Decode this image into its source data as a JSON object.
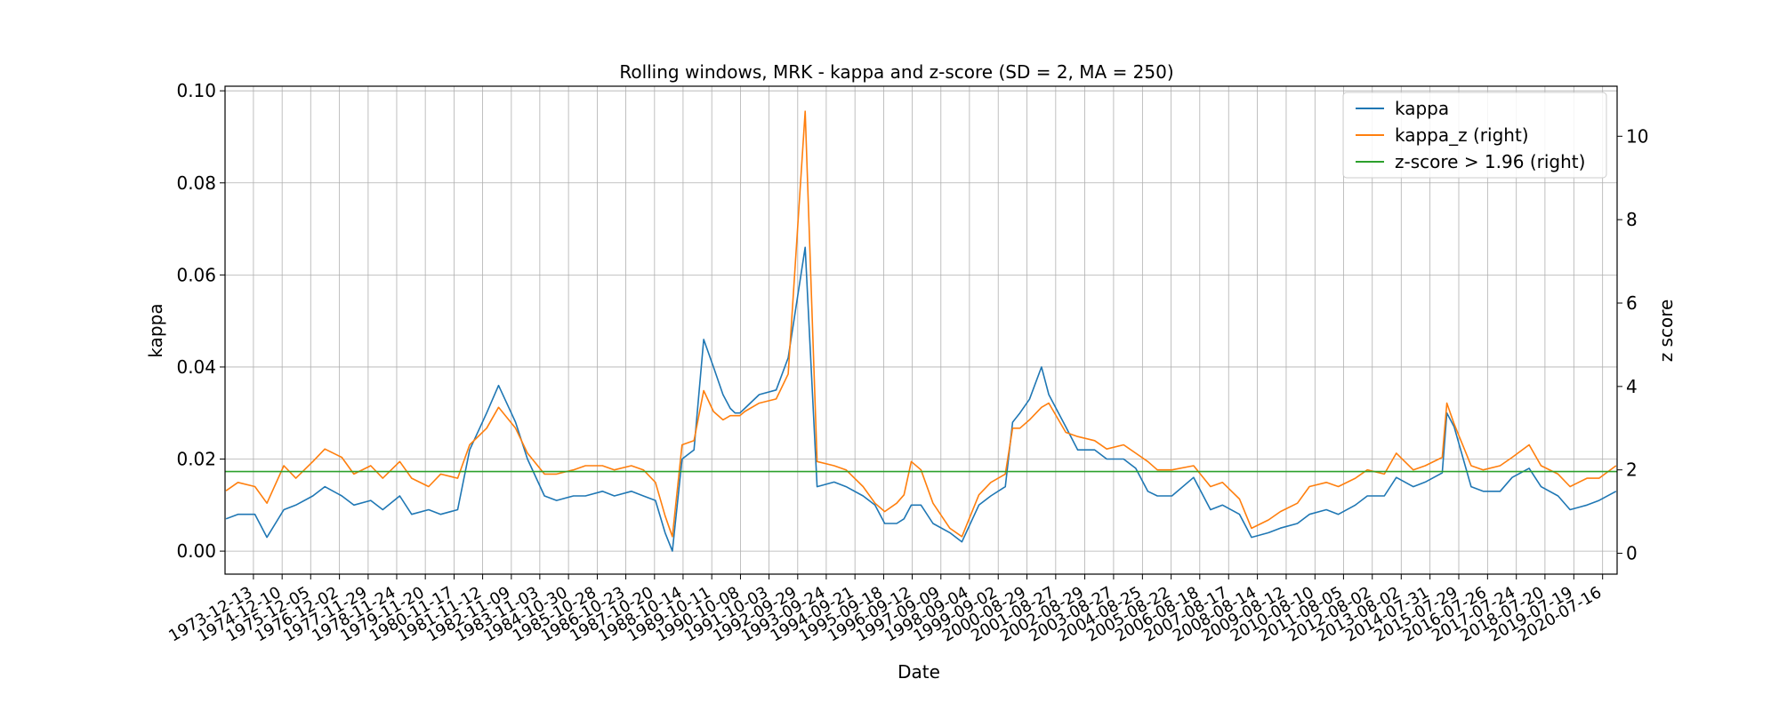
{
  "chart_data": {
    "type": "line",
    "title": "Rolling windows, MRK - kappa and z-score (SD = 2, MA = 250)",
    "xlabel": "Date",
    "ylabel": "kappa",
    "y2label": "z score",
    "x_range": [
      "1972-12-20",
      "2021-01-15"
    ],
    "ylim": [
      -0.005,
      0.101
    ],
    "y2lim": [
      -0.5,
      11.2
    ],
    "yticks": [
      "0.00",
      "0.02",
      "0.04",
      "0.06",
      "0.08",
      "0.10"
    ],
    "y2ticks": [
      "0",
      "2",
      "4",
      "6",
      "8",
      "10"
    ],
    "x_tick_labels": [
      "1973-12-13",
      "1974-12-10",
      "1975-12-05",
      "1976-12-02",
      "1977-11-29",
      "1978-11-24",
      "1979-11-20",
      "1980-11-17",
      "1981-11-12",
      "1982-11-09",
      "1983-11-03",
      "1984-10-30",
      "1985-10-28",
      "1986-10-23",
      "1987-10-20",
      "1988-10-14",
      "1989-10-11",
      "1990-10-08",
      "1991-10-03",
      "1992-09-29",
      "1993-09-24",
      "1994-09-21",
      "1995-09-18",
      "1996-09-12",
      "1997-09-09",
      "1998-09-04",
      "1999-09-02",
      "2000-08-29",
      "2001-08-27",
      "2002-08-29",
      "2003-08-27",
      "2004-08-25",
      "2005-08-22",
      "2006-08-18",
      "2007-08-17",
      "2008-08-14",
      "2009-08-12",
      "2010-08-10",
      "2011-08-05",
      "2012-08-02",
      "2013-08-02",
      "2014-07-31",
      "2015-07-29",
      "2016-07-26",
      "2017-07-24",
      "2018-07-20",
      "2019-07-19",
      "2020-07-16"
    ],
    "grid": true,
    "legend_position": "top-right",
    "series": [
      {
        "name": "kappa",
        "axis": "left",
        "color": "#1f77b4",
        "x": [
          "1973-01-01",
          "1973-06-01",
          "1974-01-01",
          "1974-06-01",
          "1975-01-01",
          "1975-06-01",
          "1976-01-01",
          "1976-06-01",
          "1977-01-01",
          "1977-06-01",
          "1978-01-01",
          "1978-06-01",
          "1979-01-01",
          "1979-06-01",
          "1980-01-01",
          "1980-06-01",
          "1981-01-01",
          "1981-06-01",
          "1982-01-01",
          "1982-06-01",
          "1983-01-01",
          "1983-06-01",
          "1984-01-01",
          "1984-06-01",
          "1985-01-01",
          "1985-06-01",
          "1986-01-01",
          "1986-06-01",
          "1987-01-01",
          "1987-06-01",
          "1987-11-01",
          "1988-03-01",
          "1988-06-01",
          "1988-10-01",
          "1989-03-01",
          "1989-07-01",
          "1989-11-01",
          "1990-03-01",
          "1990-06-01",
          "1990-08-01",
          "1990-10-01",
          "1990-12-01",
          "1991-06-01",
          "1992-01-01",
          "1992-06-01",
          "1993-01-01",
          "1993-06-01",
          "1994-01-01",
          "1994-06-01",
          "1995-01-01",
          "1995-06-01",
          "1995-10-01",
          "1996-03-01",
          "1996-06-01",
          "1996-09-01",
          "1997-01-01",
          "1997-06-01",
          "1998-01-01",
          "1998-06-01",
          "1999-01-01",
          "1999-06-01",
          "1999-12-01",
          "2000-03-01",
          "2000-06-01",
          "2000-10-01",
          "2001-03-01",
          "2001-06-01",
          "2002-01-01",
          "2002-06-01",
          "2003-01-01",
          "2003-06-01",
          "2004-01-01",
          "2004-06-01",
          "2004-11-01",
          "2005-03-01",
          "2005-09-01",
          "2006-06-01",
          "2007-01-01",
          "2007-06-01",
          "2008-01-01",
          "2008-06-01",
          "2009-01-01",
          "2009-06-01",
          "2010-01-01",
          "2010-06-01",
          "2011-01-01",
          "2011-06-01",
          "2012-01-01",
          "2012-06-01",
          "2013-01-01",
          "2013-06-01",
          "2014-01-01",
          "2014-06-01",
          "2015-01-01",
          "2015-03-01",
          "2015-06-01",
          "2016-01-01",
          "2016-06-01",
          "2017-01-01",
          "2017-06-01",
          "2018-01-01",
          "2018-06-01",
          "2019-01-01",
          "2019-06-01",
          "2020-01-01",
          "2020-06-01",
          "2021-01-01"
        ],
        "values": [
          0.007,
          0.008,
          0.008,
          0.003,
          0.009,
          0.01,
          0.012,
          0.014,
          0.012,
          0.01,
          0.011,
          0.009,
          0.012,
          0.008,
          0.009,
          0.008,
          0.009,
          0.022,
          0.03,
          0.036,
          0.028,
          0.02,
          0.012,
          0.011,
          0.012,
          0.012,
          0.013,
          0.012,
          0.013,
          0.012,
          0.011,
          0.004,
          0.0,
          0.02,
          0.022,
          0.046,
          0.04,
          0.034,
          0.031,
          0.03,
          0.03,
          0.031,
          0.034,
          0.035,
          0.042,
          0.066,
          0.014,
          0.015,
          0.014,
          0.012,
          0.01,
          0.006,
          0.006,
          0.007,
          0.01,
          0.01,
          0.006,
          0.004,
          0.002,
          0.01,
          0.012,
          0.014,
          0.028,
          0.03,
          0.033,
          0.04,
          0.034,
          0.027,
          0.022,
          0.022,
          0.02,
          0.02,
          0.018,
          0.013,
          0.012,
          0.012,
          0.016,
          0.009,
          0.01,
          0.008,
          0.003,
          0.004,
          0.005,
          0.006,
          0.008,
          0.009,
          0.008,
          0.01,
          0.012,
          0.012,
          0.016,
          0.014,
          0.015,
          0.017,
          0.03,
          0.027,
          0.014,
          0.013,
          0.013,
          0.016,
          0.018,
          0.014,
          0.012,
          0.009,
          0.01,
          0.011,
          0.013
        ]
      },
      {
        "name": "kappa_z (right)",
        "axis": "right",
        "color": "#ff7f0e",
        "x": [
          "1973-01-01",
          "1973-06-01",
          "1974-01-01",
          "1974-06-01",
          "1975-01-01",
          "1975-06-01",
          "1976-01-01",
          "1976-06-01",
          "1977-01-01",
          "1977-06-01",
          "1978-01-01",
          "1978-06-01",
          "1979-01-01",
          "1979-06-01",
          "1980-01-01",
          "1980-06-01",
          "1981-01-01",
          "1981-06-01",
          "1982-01-01",
          "1982-06-01",
          "1983-01-01",
          "1983-06-01",
          "1984-01-01",
          "1984-06-01",
          "1985-01-01",
          "1985-06-01",
          "1986-01-01",
          "1986-06-01",
          "1987-01-01",
          "1987-06-01",
          "1987-11-01",
          "1988-03-01",
          "1988-06-01",
          "1988-10-01",
          "1989-03-01",
          "1989-07-01",
          "1989-11-01",
          "1990-03-01",
          "1990-06-01",
          "1990-08-01",
          "1990-10-01",
          "1990-12-01",
          "1991-06-01",
          "1992-01-01",
          "1992-06-01",
          "1993-01-01",
          "1993-06-01",
          "1994-01-01",
          "1994-06-01",
          "1995-01-01",
          "1995-06-01",
          "1995-10-01",
          "1996-03-01",
          "1996-06-01",
          "1996-09-01",
          "1997-01-01",
          "1997-06-01",
          "1998-01-01",
          "1998-06-01",
          "1999-01-01",
          "1999-06-01",
          "1999-12-01",
          "2000-03-01",
          "2000-06-01",
          "2000-10-01",
          "2001-03-01",
          "2001-06-01",
          "2002-01-01",
          "2002-06-01",
          "2003-01-01",
          "2003-06-01",
          "2004-01-01",
          "2004-06-01",
          "2004-11-01",
          "2005-03-01",
          "2005-09-01",
          "2006-06-01",
          "2007-01-01",
          "2007-06-01",
          "2008-01-01",
          "2008-06-01",
          "2009-01-01",
          "2009-06-01",
          "2010-01-01",
          "2010-06-01",
          "2011-01-01",
          "2011-06-01",
          "2012-01-01",
          "2012-06-01",
          "2013-01-01",
          "2013-06-01",
          "2014-01-01",
          "2014-06-01",
          "2015-01-01",
          "2015-03-01",
          "2015-06-01",
          "2016-01-01",
          "2016-06-01",
          "2017-01-01",
          "2017-06-01",
          "2018-01-01",
          "2018-06-01",
          "2019-01-01",
          "2019-06-01",
          "2020-01-01",
          "2020-06-01",
          "2021-01-01"
        ],
        "values": [
          1.5,
          1.7,
          1.6,
          1.2,
          2.1,
          1.8,
          2.2,
          2.5,
          2.3,
          1.9,
          2.1,
          1.8,
          2.2,
          1.8,
          1.6,
          1.9,
          1.8,
          2.6,
          3.0,
          3.5,
          3.0,
          2.4,
          1.9,
          1.9,
          2.0,
          2.1,
          2.1,
          2.0,
          2.1,
          2.0,
          1.7,
          0.9,
          0.4,
          2.6,
          2.7,
          3.9,
          3.4,
          3.2,
          3.3,
          3.3,
          3.3,
          3.4,
          3.6,
          3.7,
          4.3,
          10.6,
          2.2,
          2.1,
          2.0,
          1.6,
          1.2,
          1.0,
          1.2,
          1.4,
          2.2,
          2.0,
          1.2,
          0.6,
          0.4,
          1.4,
          1.7,
          1.9,
          3.0,
          3.0,
          3.2,
          3.5,
          3.6,
          2.9,
          2.8,
          2.7,
          2.5,
          2.6,
          2.4,
          2.2,
          2.0,
          2.0,
          2.1,
          1.6,
          1.7,
          1.3,
          0.6,
          0.8,
          1.0,
          1.2,
          1.6,
          1.7,
          1.6,
          1.8,
          2.0,
          1.9,
          2.4,
          2.0,
          2.1,
          2.3,
          3.6,
          3.1,
          2.1,
          2.0,
          2.1,
          2.3,
          2.6,
          2.1,
          1.9,
          1.6,
          1.8,
          1.8,
          2.1
        ]
      },
      {
        "name": "z-score > 1.96 (right)",
        "axis": "right",
        "color": "#2ca02c",
        "x": [
          "1972-12-20",
          "2021-01-15"
        ],
        "values": [
          1.96,
          1.96
        ]
      }
    ]
  }
}
